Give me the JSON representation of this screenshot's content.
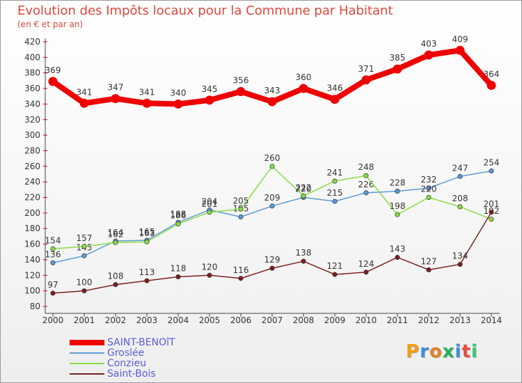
{
  "header": {
    "title": "Evolution des Impôts locaux pour la Commune par Habitant",
    "subtitle": "(en € et par an)"
  },
  "chart_data": {
    "type": "line",
    "x": [
      2000,
      2001,
      2002,
      2003,
      2004,
      2005,
      2006,
      2007,
      2008,
      2009,
      2010,
      2011,
      2012,
      2013,
      2014
    ],
    "ylim": [
      80,
      420
    ],
    "ytick_step": 20,
    "grid": false,
    "legend_position": "bottom-left",
    "series": [
      {
        "name": "SAINT-BENOîT",
        "color": "#ee0000",
        "thick": true,
        "values": [
          369,
          341,
          347,
          341,
          340,
          345,
          356,
          343,
          360,
          346,
          371,
          385,
          403,
          409,
          364
        ]
      },
      {
        "name": "Groslée",
        "color": "#5b9bd5",
        "thick": false,
        "values": [
          136,
          145,
          164,
          165,
          188,
          204,
          195,
          209,
          220,
          215,
          226,
          228,
          232,
          247,
          254
        ]
      },
      {
        "name": "Conzieu",
        "color": "#88dd44",
        "thick": false,
        "values": [
          154,
          157,
          162,
          163,
          186,
          201,
          205,
          260,
          222,
          241,
          248,
          198,
          220,
          208,
          192
        ]
      },
      {
        "name": "Saint-Bois",
        "color": "#7a2020",
        "thick": false,
        "values": [
          97,
          100,
          108,
          113,
          118,
          120,
          116,
          129,
          138,
          121,
          124,
          143,
          127,
          134,
          201
        ]
      }
    ]
  },
  "logo": {
    "text": "Proxiti"
  }
}
